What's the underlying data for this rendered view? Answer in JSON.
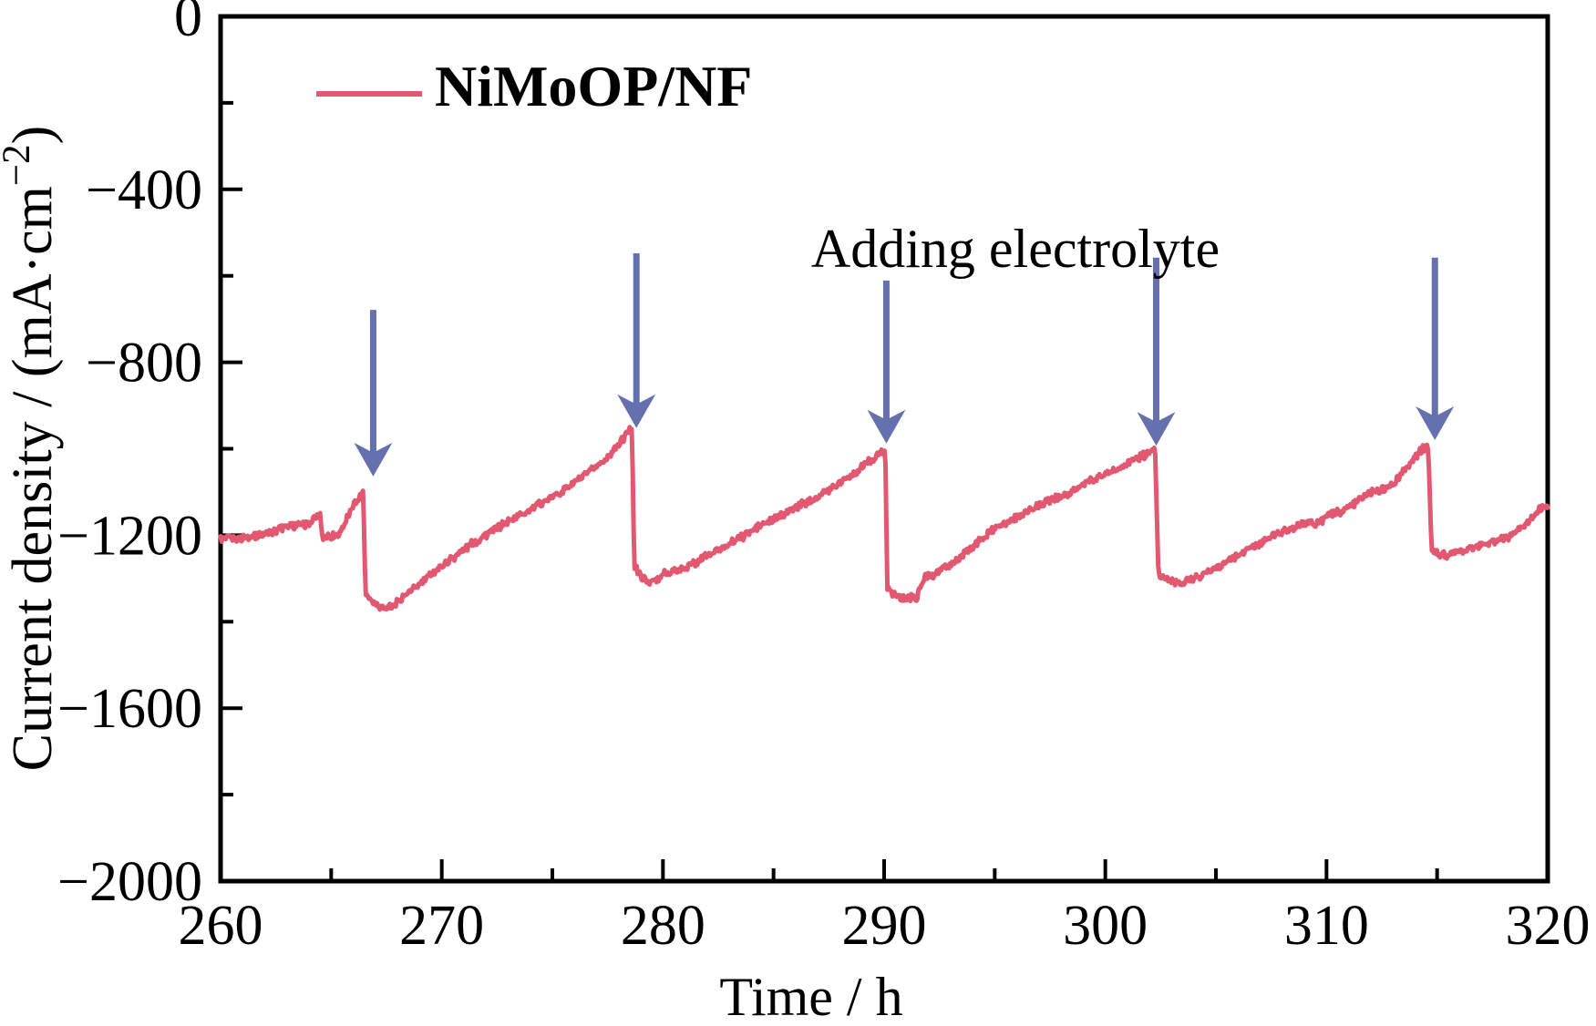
{
  "chart_data": {
    "type": "line",
    "title": "",
    "xlabel": "Time / h",
    "ylabel": {
      "pre": "Current density / (mA·cm",
      "sup": "−2",
      "post": ")"
    },
    "x_range": [
      260,
      320
    ],
    "y_range": [
      -2000,
      0
    ],
    "grid": false,
    "legend": {
      "label": "NiMoOP/NF",
      "position": "inside-top-left"
    },
    "annotation": {
      "text": "Adding electrolyte"
    },
    "x_ticks": {
      "major": [
        260,
        270,
        280,
        290,
        300,
        310,
        320
      ],
      "major_labels": [
        "260",
        "270",
        "280",
        "290",
        "300",
        "310",
        "320"
      ],
      "minor": [
        265,
        275,
        285,
        295,
        305,
        315
      ]
    },
    "y_ticks": {
      "major": [
        0,
        -400,
        -800,
        -1200,
        -1600,
        -2000
      ],
      "major_labels": [
        "0",
        "−400",
        "−800",
        "−1200",
        "−1600",
        "−2000"
      ],
      "minor": [
        -200,
        -600,
        -1000,
        -1400,
        -1800
      ]
    },
    "series": [
      {
        "name": "NiMoOP/NF",
        "color": "#E25870",
        "noise_amplitude": 7,
        "keypoints": [
          [
            260.0,
            -1210
          ],
          [
            261.0,
            -1206
          ],
          [
            262.0,
            -1197
          ],
          [
            262.7,
            -1184
          ],
          [
            263.4,
            -1178
          ],
          [
            264.0,
            -1174
          ],
          [
            264.3,
            -1159
          ],
          [
            264.5,
            -1157
          ],
          [
            264.6,
            -1202
          ],
          [
            265.0,
            -1201
          ],
          [
            265.35,
            -1197
          ],
          [
            265.7,
            -1163
          ],
          [
            266.0,
            -1134
          ],
          [
            266.25,
            -1112
          ],
          [
            266.45,
            -1098
          ],
          [
            266.55,
            -1330
          ],
          [
            266.8,
            -1348
          ],
          [
            267.3,
            -1367
          ],
          [
            267.8,
            -1363
          ],
          [
            268.3,
            -1341
          ],
          [
            269.0,
            -1313
          ],
          [
            270.0,
            -1271
          ],
          [
            271.0,
            -1233
          ],
          [
            272.0,
            -1199
          ],
          [
            273.0,
            -1168
          ],
          [
            274.0,
            -1140
          ],
          [
            275.0,
            -1112
          ],
          [
            276.0,
            -1078
          ],
          [
            276.8,
            -1049
          ],
          [
            277.5,
            -1019
          ],
          [
            278.1,
            -985
          ],
          [
            278.45,
            -957
          ],
          [
            278.6,
            -948
          ],
          [
            278.7,
            -1272
          ],
          [
            279.0,
            -1295
          ],
          [
            279.35,
            -1308
          ],
          [
            279.85,
            -1305
          ],
          [
            279.95,
            -1290
          ],
          [
            280.6,
            -1283
          ],
          [
            281.2,
            -1270
          ],
          [
            282.0,
            -1248
          ],
          [
            283.0,
            -1221
          ],
          [
            284.0,
            -1190
          ],
          [
            285.0,
            -1162
          ],
          [
            286.0,
            -1136
          ],
          [
            287.0,
            -1110
          ],
          [
            288.0,
            -1077
          ],
          [
            288.8,
            -1050
          ],
          [
            289.4,
            -1026
          ],
          [
            289.85,
            -1008
          ],
          [
            290.05,
            -1003
          ],
          [
            290.15,
            -1326
          ],
          [
            290.5,
            -1338
          ],
          [
            290.9,
            -1346
          ],
          [
            291.5,
            -1343
          ],
          [
            291.8,
            -1300
          ],
          [
            292.3,
            -1288
          ],
          [
            293.0,
            -1270
          ],
          [
            294.0,
            -1228
          ],
          [
            295.0,
            -1184
          ],
          [
            296.0,
            -1158
          ],
          [
            297.0,
            -1130
          ],
          [
            298.0,
            -1110
          ],
          [
            299.0,
            -1082
          ],
          [
            300.0,
            -1058
          ],
          [
            300.8,
            -1040
          ],
          [
            301.5,
            -1020
          ],
          [
            302.0,
            -1008
          ],
          [
            302.25,
            -1002
          ],
          [
            302.4,
            -1290
          ],
          [
            302.8,
            -1302
          ],
          [
            303.2,
            -1310
          ],
          [
            303.6,
            -1308
          ],
          [
            303.9,
            -1302
          ],
          [
            304.5,
            -1288
          ],
          [
            305.6,
            -1260
          ],
          [
            306.6,
            -1228
          ],
          [
            307.7,
            -1199
          ],
          [
            308.7,
            -1178
          ],
          [
            309.3,
            -1168
          ],
          [
            309.5,
            -1175
          ],
          [
            309.9,
            -1160
          ],
          [
            310.7,
            -1142
          ],
          [
            311.3,
            -1127
          ],
          [
            311.8,
            -1106
          ],
          [
            312.4,
            -1098
          ],
          [
            313.0,
            -1082
          ],
          [
            313.5,
            -1052
          ],
          [
            313.9,
            -1026
          ],
          [
            314.35,
            -1000
          ],
          [
            314.6,
            -993
          ],
          [
            314.75,
            -1238
          ],
          [
            315.1,
            -1243
          ],
          [
            315.5,
            -1246
          ],
          [
            316.0,
            -1237
          ],
          [
            316.5,
            -1232
          ],
          [
            317.0,
            -1224
          ],
          [
            317.6,
            -1215
          ],
          [
            318.2,
            -1205
          ],
          [
            318.7,
            -1185
          ],
          [
            319.2,
            -1162
          ],
          [
            319.6,
            -1143
          ],
          [
            320.0,
            -1133
          ]
        ]
      }
    ],
    "events": {
      "label": "Adding electrolyte",
      "color": "#6570AF",
      "arrows": [
        {
          "t": 266.9,
          "y_tail": -679,
          "y_tip": -1064
        },
        {
          "t": 278.8,
          "y_tail": -548,
          "y_tip": -952
        },
        {
          "t": 290.1,
          "y_tail": -611,
          "y_tip": -988
        },
        {
          "t": 302.3,
          "y_tail": -558,
          "y_tip": -993
        },
        {
          "t": 314.9,
          "y_tail": -558,
          "y_tip": -980
        }
      ]
    }
  }
}
